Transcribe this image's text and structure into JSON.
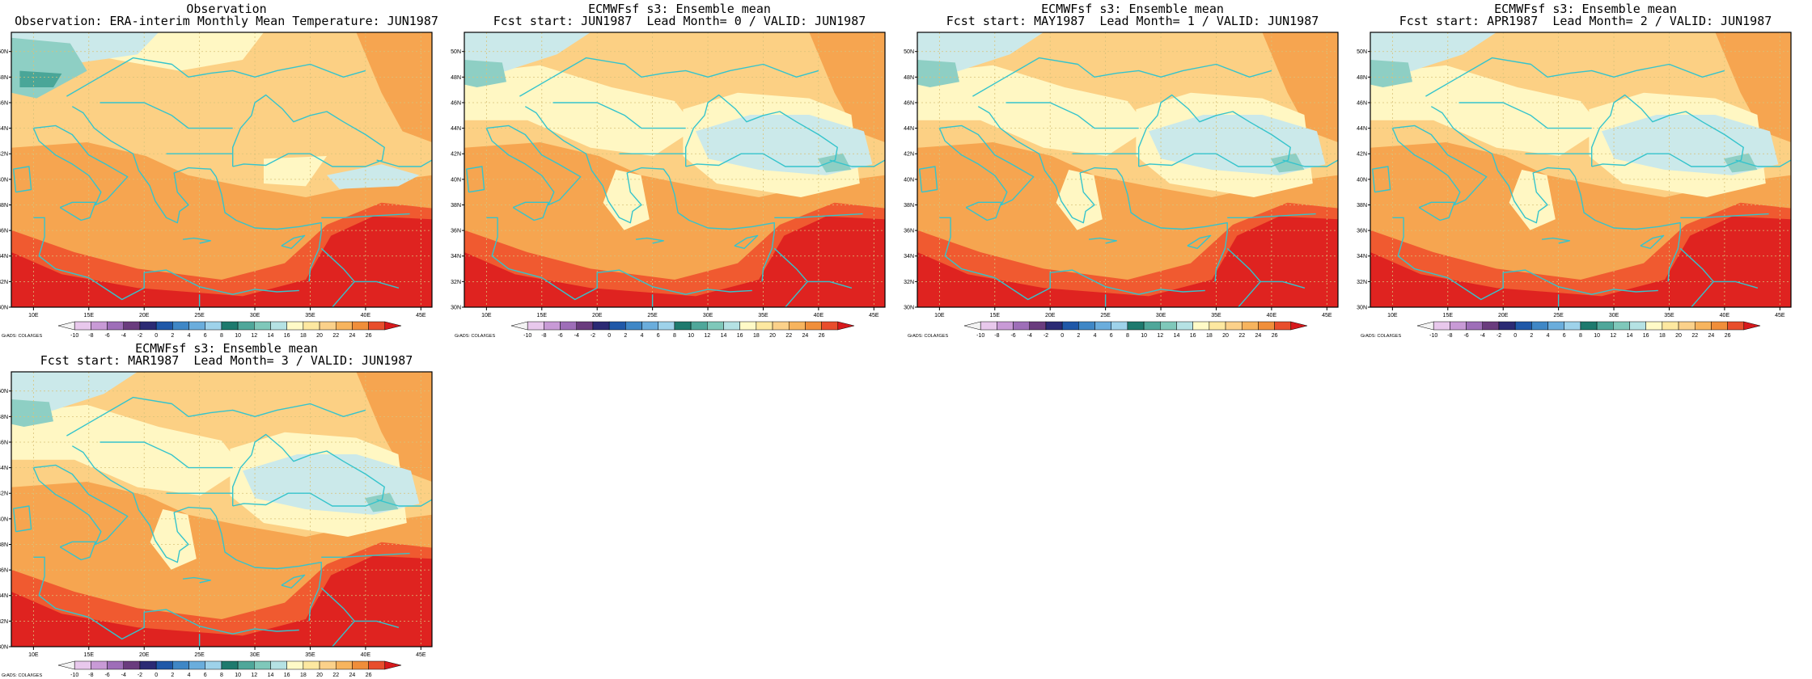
{
  "panels": [
    {
      "title_line1": "Observation",
      "title_line2": "Observation: ERA-interim Monthly Mean Temperature: JUN1987",
      "variant": "obs"
    },
    {
      "title_line1": "ECMWFsf s3: Ensemble mean",
      "title_line2": "Fcst start: JUN1987  Lead Month= 0 / VALID: JUN1987",
      "variant": "fc"
    },
    {
      "title_line1": "ECMWFsf s3: Ensemble mean",
      "title_line2": "Fcst start: MAY1987  Lead Month= 1 / VALID: JUN1987",
      "variant": "fc"
    },
    {
      "title_line1": "ECMWFsf s3: Ensemble mean",
      "title_line2": "Fcst start: APR1987  Lead Month= 2 / VALID: JUN1987",
      "variant": "fc"
    },
    {
      "title_line1": "ECMWFsf s3: Ensemble mean",
      "title_line2": "Fcst start: MAR1987  Lead Month= 3 / VALID: JUN1987",
      "variant": "fc"
    }
  ],
  "lon_labels": [
    "10E",
    "15E",
    "20E",
    "25E",
    "30E",
    "35E",
    "40E",
    "45E"
  ],
  "lat_labels": [
    "30N",
    "32N",
    "34N",
    "36N",
    "38N",
    "40N",
    "42N",
    "44N",
    "46N",
    "48N",
    "50N"
  ],
  "colorbar": {
    "credit": "GrADS: COLA/IGES",
    "levels": [
      "-10",
      "-8",
      "-6",
      "-4",
      "-2",
      "0",
      "2",
      "4",
      "6",
      "8",
      "10",
      "12",
      "14",
      "16",
      "18",
      "20",
      "22",
      "24",
      "26"
    ],
    "colors": [
      "#f3f3f3",
      "#e8c8ec",
      "#c89ad6",
      "#9e6eb8",
      "#6a3c7e",
      "#2b2a74",
      "#1f58a8",
      "#3f87c6",
      "#6aaddc",
      "#9ed2ea",
      "#1e7a6e",
      "#4fa79a",
      "#7fc8ba",
      "#b5e2e4",
      "#fffac7",
      "#fde8a0",
      "#fbd18a",
      "#f7b45e",
      "#f08e3a",
      "#e84e2c",
      "#d7191c"
    ]
  },
  "fill_colors": {
    "red": "#df2320",
    "red_orange": "#f05a30",
    "orange": "#f6a550",
    "light_orange": "#fcd084",
    "pale_yellow": "#fff7c3",
    "light_cyan": "#cbe9ea",
    "teal": "#8ecfc4",
    "dark_teal": "#4aa698",
    "coast": "#35c4cc",
    "grid": "#d8c27a"
  }
}
